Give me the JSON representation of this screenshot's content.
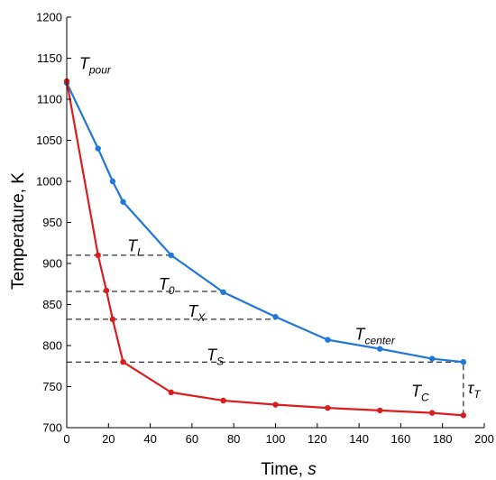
{
  "chart_data": {
    "type": "line",
    "xlabel": "Time, ",
    "xlabel_italic": "s",
    "ylabel": "Temperature, K",
    "xlim": [
      0,
      200
    ],
    "ylim": [
      700,
      1200
    ],
    "xticks": [
      "0",
      "20",
      "40",
      "60",
      "80",
      "100",
      "120",
      "140",
      "160",
      "180",
      "200"
    ],
    "yticks": [
      "700",
      "750",
      "800",
      "850",
      "900",
      "950",
      "1000",
      "1050",
      "1100",
      "1150",
      "1200"
    ],
    "grid": false,
    "series": [
      {
        "name_main": "T",
        "name_sub": "center",
        "color": "#1f78d8",
        "x": [
          0,
          15,
          22,
          27,
          50,
          75,
          100,
          125,
          150,
          175,
          190
        ],
        "y": [
          1120,
          1040,
          1000,
          975,
          910,
          865,
          835,
          807,
          796,
          784,
          780
        ]
      },
      {
        "name_main": "T",
        "name_sub": "C",
        "color": "#d81e1e",
        "x": [
          0,
          15,
          19,
          22,
          27,
          50,
          75,
          100,
          125,
          150,
          175,
          190
        ],
        "y": [
          1122,
          910,
          867,
          832,
          780,
          743,
          733,
          728,
          724,
          721,
          718,
          715
        ]
      }
    ],
    "annotations": [
      {
        "main": "T",
        "sub": "pour",
        "x": 6,
        "y": 1137
      },
      {
        "main": "T",
        "sub": "L",
        "x": 29,
        "y": 915
      },
      {
        "main": "T",
        "sub": "0",
        "x": 44,
        "y": 868
      },
      {
        "main": "T",
        "sub": "X",
        "x": 58,
        "y": 835
      },
      {
        "main": "T",
        "sub": "S",
        "x": 67,
        "y": 782
      },
      {
        "main": "T",
        "sub": "center",
        "x": 138,
        "y": 807
      },
      {
        "main": "T",
        "sub": "C",
        "x": 165,
        "y": 738
      },
      {
        "main": "τ",
        "sub": "T",
        "x": 192,
        "y": 742
      }
    ],
    "reference_lines": [
      {
        "y": 910,
        "x_end": 50
      },
      {
        "y": 866,
        "x_end": 75
      },
      {
        "y": 832,
        "x_end": 100
      },
      {
        "y": 780,
        "x_end": 190
      }
    ],
    "tau_marker": {
      "x": 190,
      "y_from": 715,
      "y_to": 780
    }
  }
}
